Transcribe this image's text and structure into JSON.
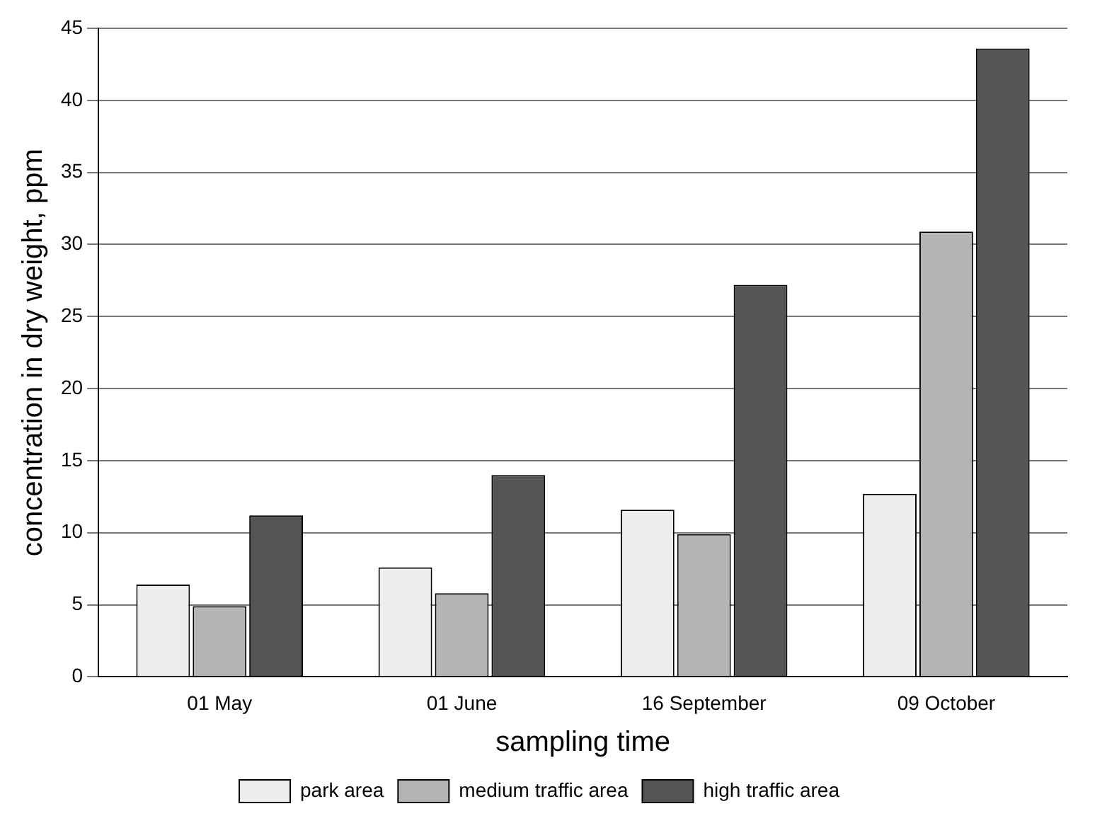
{
  "chart_data": {
    "type": "bar",
    "xlabel": "sampling time",
    "ylabel": "concentration in dry weight, ppm",
    "categories": [
      "01 May",
      "01 June",
      "16 September",
      "09 October"
    ],
    "series": [
      {
        "name": "park area",
        "color": "#eeeeee",
        "values": [
          6.4,
          7.6,
          11.6,
          12.7
        ]
      },
      {
        "name": "medium traffic area",
        "color": "#b5b5b5",
        "values": [
          4.9,
          5.8,
          9.9,
          30.9
        ]
      },
      {
        "name": "high traffic area",
        "color": "#555555",
        "values": [
          11.2,
          14.0,
          27.2,
          43.6
        ]
      }
    ],
    "ylim": [
      0,
      45
    ],
    "yticks": [
      0,
      5,
      10,
      15,
      20,
      25,
      30,
      35,
      40,
      45
    ],
    "grid": "y",
    "legend": "bottom"
  }
}
